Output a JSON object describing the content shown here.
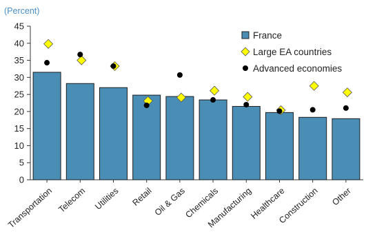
{
  "chart_data": {
    "type": "bar",
    "subtitle": "(Percent)",
    "categories": [
      "Transportation",
      "Telecom",
      "Utilities",
      "Retail",
      "Oil & Gas",
      "Chemicals",
      "Manufacturing",
      "Healthcare",
      "Construction",
      "Other"
    ],
    "series": [
      {
        "name": "France",
        "kind": "bar",
        "values": [
          31.5,
          28.2,
          27.0,
          24.8,
          24.4,
          23.4,
          21.5,
          19.7,
          18.3,
          17.9
        ]
      },
      {
        "name": "Large EA countries",
        "kind": "diamond",
        "values": [
          39.8,
          35.0,
          33.3,
          23.1,
          24.1,
          26.1,
          24.3,
          20.4,
          27.5,
          25.6
        ]
      },
      {
        "name": "Advanced economies",
        "kind": "dot",
        "values": [
          34.3,
          36.7,
          33.3,
          21.8,
          30.7,
          23.4,
          22.0,
          20.1,
          20.5,
          21.0
        ]
      }
    ],
    "ylim": [
      0,
      45
    ],
    "yticks": [
      0,
      5,
      10,
      15,
      20,
      25,
      30,
      35,
      40,
      45
    ],
    "grid": false,
    "legend_position": "top-right",
    "colors": {
      "bar": "#4A8DB5",
      "bar_edge": "#1F1F1F",
      "diamond": "#FFFF00",
      "diamond_edge": "#555555",
      "dot": "#000000",
      "subtitle": "#4A90C8",
      "axis": "#333333"
    }
  }
}
